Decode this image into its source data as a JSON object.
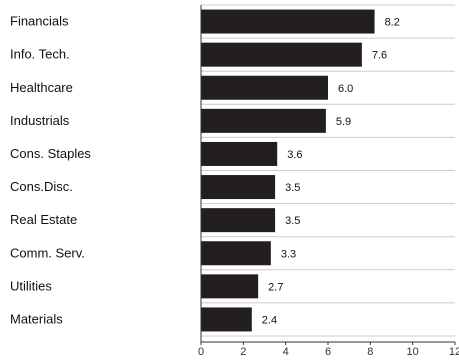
{
  "chart_data": {
    "type": "bar",
    "orientation": "horizontal",
    "categories": [
      "Financials",
      "Info. Tech.",
      "Healthcare",
      "Industrials",
      "Cons. Staples",
      "Cons.Disc.",
      "Real Estate",
      "Comm. Serv.",
      "Utilities",
      "Materials"
    ],
    "values": [
      8.2,
      7.6,
      6.0,
      5.9,
      3.6,
      3.5,
      3.5,
      3.3,
      2.7,
      2.4
    ],
    "value_labels": [
      "8.2",
      "7.6",
      "6.0",
      "5.9",
      "3.6",
      "3.5",
      "3.5",
      "3.3",
      "2.7",
      "2.4"
    ],
    "xlim": [
      0,
      12
    ],
    "xticks": [
      0,
      2,
      4,
      6,
      8,
      10,
      12
    ],
    "xtick_labels": [
      "0",
      "2",
      "4",
      "6",
      "8",
      "10",
      "12"
    ],
    "title": "",
    "xlabel": "",
    "ylabel": "",
    "grid": true,
    "legend": "none",
    "colors": {
      "bar": "#231f20",
      "grid": "#cccccc",
      "axis": "#333333"
    }
  }
}
